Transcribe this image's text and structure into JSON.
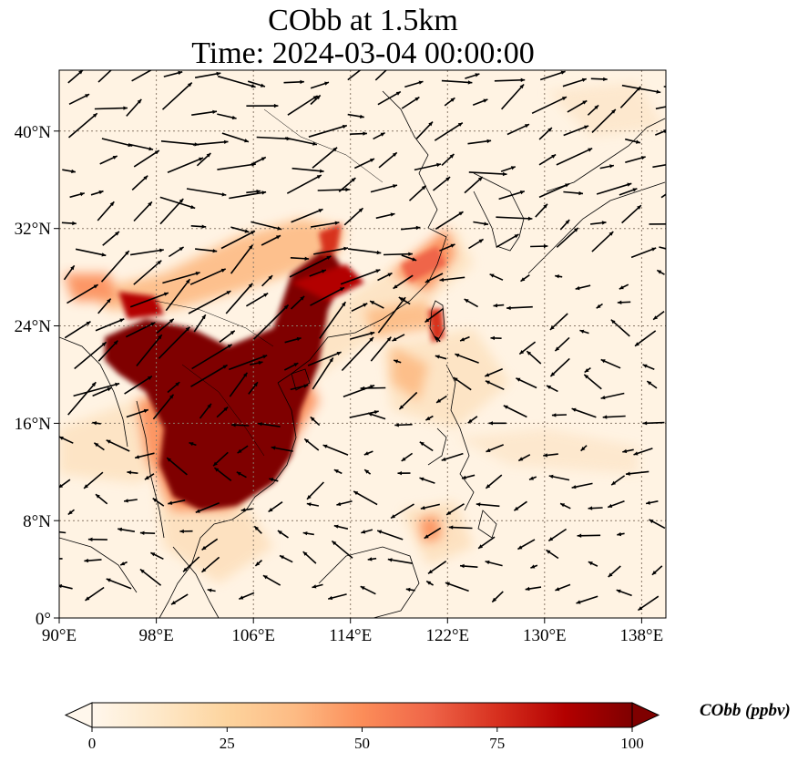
{
  "title": {
    "line1": "CObb at 1.5km",
    "line2": "Time: 2024-03-04 00:00:00"
  },
  "map": {
    "projection": "PlateCarree",
    "lon_range": [
      90,
      140
    ],
    "lat_range": [
      0,
      45
    ],
    "gridlines": "dotted",
    "lon_ticks": [
      "90°E",
      "98°E",
      "106°E",
      "114°E",
      "122°E",
      "130°E",
      "138°E"
    ],
    "lat_ticks": [
      "0°",
      "8°N",
      "16°N",
      "24°N",
      "32°N",
      "40°N"
    ],
    "coastlines": true,
    "wind_vectors": true
  },
  "colorbar": {
    "label": "CObb (ppbv)",
    "ticks": [
      "0",
      "25",
      "50",
      "75",
      "100"
    ],
    "cmap": "OrRd",
    "extend": "both",
    "colors": [
      "#fff7ec",
      "#fee8c8",
      "#fdd49e",
      "#fdbb84",
      "#fc8d59",
      "#ef6548",
      "#d7301f",
      "#b30000",
      "#7f0000"
    ]
  }
}
